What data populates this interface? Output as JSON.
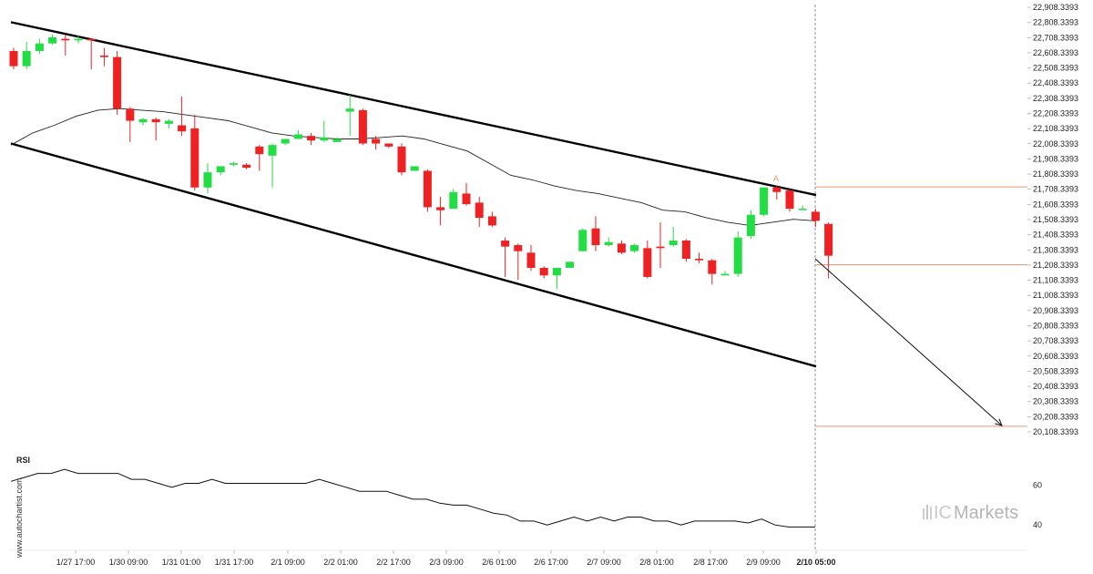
{
  "chart_data": [
    {
      "type": "candlestick",
      "x": [
        "1/27 17:00",
        "1/30 09:00",
        "1/31 01:00",
        "1/31 17:00",
        "2/1 09:00",
        "2/2 01:00",
        "2/2 17:00",
        "2/3 09:00",
        "2/6 01:00",
        "2/6 17:00",
        "2/7 09:00",
        "2/8 01:00",
        "2/8 17:00",
        "2/9 09:00",
        "2/10 05:00"
      ],
      "ylim": [
        20050,
        22950
      ],
      "yticks": [
        "22,908.3393",
        "22,808.3393",
        "22,708.3393",
        "22,608.3393",
        "22,508.3393",
        "22,408.3393",
        "22,308.3393",
        "22,208.3393",
        "22,108.3393",
        "22,008.3393",
        "21,908.3393",
        "21,808.3393",
        "21,708.3393",
        "21,608.3393",
        "21,508.3393",
        "21,408.3393",
        "21,308.3393",
        "21,208.3393",
        "21,108.3393",
        "21,008.3393",
        "20,908.3393",
        "20,808.3393",
        "20,708.3393",
        "20,608.3393",
        "20,508.3393",
        "20,408.3393",
        "20,308.3393",
        "20,208.3393",
        "20,108.3393"
      ],
      "candles": [
        {
          "o": 22620,
          "h": 22640,
          "c": 22520,
          "l": 22500
        },
        {
          "o": 22520,
          "h": 22680,
          "c": 22620,
          "l": 22500
        },
        {
          "o": 22620,
          "h": 22700,
          "c": 22670,
          "l": 22600
        },
        {
          "o": 22670,
          "h": 22730,
          "c": 22710,
          "l": 22660
        },
        {
          "o": 22700,
          "h": 22730,
          "c": 22690,
          "l": 22590
        },
        {
          "o": 22690,
          "h": 22720,
          "c": 22700,
          "l": 22670
        },
        {
          "o": 22700,
          "h": 22700,
          "c": 22690,
          "l": 22500
        },
        {
          "o": 22590,
          "h": 22640,
          "c": 22580,
          "l": 22520
        },
        {
          "o": 22580,
          "h": 22620,
          "c": 22240,
          "l": 22200
        },
        {
          "o": 22240,
          "h": 22250,
          "c": 22160,
          "l": 22020
        },
        {
          "o": 22150,
          "h": 22180,
          "c": 22170,
          "l": 22130
        },
        {
          "o": 22170,
          "h": 22180,
          "c": 22150,
          "l": 22030
        },
        {
          "o": 22140,
          "h": 22170,
          "c": 22160,
          "l": 22110
        },
        {
          "o": 22130,
          "h": 22320,
          "c": 22090,
          "l": 22060
        },
        {
          "o": 22110,
          "h": 22200,
          "c": 21720,
          "l": 21700
        },
        {
          "o": 21720,
          "h": 21880,
          "c": 21820,
          "l": 21680
        },
        {
          "o": 21820,
          "h": 21860,
          "c": 21860,
          "l": 21800
        },
        {
          "o": 21870,
          "h": 21890,
          "c": 21880,
          "l": 21860
        },
        {
          "o": 21870,
          "h": 21880,
          "c": 21850,
          "l": 21840
        },
        {
          "o": 21990,
          "h": 22000,
          "c": 21940,
          "l": 21830
        },
        {
          "o": 21930,
          "h": 22010,
          "c": 22000,
          "l": 21720
        },
        {
          "o": 22010,
          "h": 22040,
          "c": 22040,
          "l": 22000
        },
        {
          "o": 22040,
          "h": 22100,
          "c": 22070,
          "l": 22040
        },
        {
          "o": 22060,
          "h": 22080,
          "c": 22030,
          "l": 22000
        },
        {
          "o": 22030,
          "h": 22160,
          "c": 22050,
          "l": 22020
        },
        {
          "o": 22020,
          "h": 22050,
          "c": 22040,
          "l": 22030
        },
        {
          "o": 22220,
          "h": 22330,
          "c": 22240,
          "l": 22060
        },
        {
          "o": 22230,
          "h": 22240,
          "c": 22010,
          "l": 22000
        },
        {
          "o": 22040,
          "h": 22060,
          "c": 22010,
          "l": 21970
        },
        {
          "o": 22010,
          "h": 22010,
          "c": 21990,
          "l": 21980
        },
        {
          "o": 21990,
          "h": 22010,
          "c": 21820,
          "l": 21800
        },
        {
          "o": 21830,
          "h": 21860,
          "c": 21860,
          "l": 21830
        },
        {
          "o": 21830,
          "h": 21840,
          "c": 21590,
          "l": 21560
        },
        {
          "o": 21590,
          "h": 21660,
          "c": 21570,
          "l": 21470
        },
        {
          "o": 21580,
          "h": 21710,
          "c": 21690,
          "l": 21580
        },
        {
          "o": 21680,
          "h": 21750,
          "c": 21610,
          "l": 21600
        },
        {
          "o": 21620,
          "h": 21660,
          "c": 21520,
          "l": 21460
        },
        {
          "o": 21530,
          "h": 21560,
          "c": 21470,
          "l": 21460
        },
        {
          "o": 21370,
          "h": 21390,
          "c": 21330,
          "l": 21130
        },
        {
          "o": 21340,
          "h": 21350,
          "c": 21300,
          "l": 21110
        },
        {
          "o": 21290,
          "h": 21340,
          "c": 21190,
          "l": 21170
        },
        {
          "o": 21190,
          "h": 21200,
          "c": 21140,
          "l": 21120
        },
        {
          "o": 21140,
          "h": 21170,
          "c": 21190,
          "l": 21050
        },
        {
          "o": 21190,
          "h": 21230,
          "c": 21230,
          "l": 21190
        },
        {
          "o": 21300,
          "h": 21450,
          "c": 21440,
          "l": 21300
        },
        {
          "o": 21450,
          "h": 21530,
          "c": 21340,
          "l": 21300
        },
        {
          "o": 21340,
          "h": 21390,
          "c": 21360,
          "l": 21330
        },
        {
          "o": 21350,
          "h": 21370,
          "c": 21290,
          "l": 21280
        },
        {
          "o": 21300,
          "h": 21350,
          "c": 21340,
          "l": 21290
        },
        {
          "o": 21320,
          "h": 21370,
          "c": 21130,
          "l": 21120
        },
        {
          "o": 21330,
          "h": 21490,
          "c": 21320,
          "l": 21190
        },
        {
          "o": 21340,
          "h": 21460,
          "c": 21370,
          "l": 21330
        },
        {
          "o": 21370,
          "h": 21380,
          "c": 21250,
          "l": 21230
        },
        {
          "o": 21250,
          "h": 21290,
          "c": 21240,
          "l": 21220
        },
        {
          "o": 21240,
          "h": 21250,
          "c": 21150,
          "l": 21080
        },
        {
          "o": 21140,
          "h": 21170,
          "c": 21150,
          "l": 21140
        },
        {
          "o": 21150,
          "h": 21430,
          "c": 21390,
          "l": 21130
        },
        {
          "o": 21400,
          "h": 21570,
          "c": 21540,
          "l": 21380
        },
        {
          "o": 21540,
          "h": 21720,
          "c": 21720,
          "l": 21530
        },
        {
          "o": 21720,
          "h": 21730,
          "c": 21690,
          "l": 21640
        },
        {
          "o": 21700,
          "h": 21710,
          "c": 21580,
          "l": 21560
        },
        {
          "o": 21580,
          "h": 21600,
          "c": 21580,
          "l": 21570
        },
        {
          "o": 21560,
          "h": 21580,
          "c": 21500,
          "l": 21460
        },
        {
          "o": 21480,
          "h": 21490,
          "c": 21270,
          "l": 21120
        }
      ],
      "channel": {
        "upper": {
          "from": [
            "1/26 17:00",
            22810
          ],
          "to": [
            "2/10 05:00",
            21670
          ]
        },
        "lower": {
          "from": [
            "1/26 17:00",
            22010
          ],
          "to": [
            "2/10 05:00",
            20540
          ]
        }
      },
      "moving_average": [
        22000,
        22080,
        22130,
        22190,
        22230,
        22240,
        22230,
        22220,
        22200,
        22180,
        22160,
        22120,
        22080,
        22060,
        22050,
        22040,
        22040,
        22050,
        22060,
        22040,
        22000,
        21960,
        21880,
        21800,
        21770,
        21730,
        21700,
        21680,
        21650,
        21620,
        21570,
        21560,
        21520,
        21490,
        21470,
        21490,
        21510,
        21500
      ],
      "levels": [
        {
          "value": 21724,
          "color": "#e8956b"
        },
        {
          "value": 21210,
          "color": "#e8956b"
        },
        {
          "value": 20145,
          "color": "#e8956b"
        }
      ],
      "marker": {
        "label": "A",
        "color": "#e8956b"
      },
      "forecast": {
        "from": [
          "2/10 05:00",
          21250
        ],
        "to": [
          "2/12 20:00",
          20150
        ]
      },
      "colors": {
        "up": "#22dd44",
        "down": "#ee2222",
        "line": "#000000"
      }
    },
    {
      "type": "line",
      "panel": "RSI",
      "yticks": [
        "60",
        "40"
      ],
      "ylim": [
        30,
        75
      ],
      "values": [
        62,
        64,
        66,
        66,
        68,
        66,
        66,
        66,
        66,
        63,
        63,
        61,
        59,
        61,
        61,
        63,
        61,
        61,
        61,
        61,
        61,
        61,
        61,
        63,
        61,
        59,
        57,
        57,
        57,
        55,
        53,
        53,
        51,
        50,
        50,
        48,
        46,
        45,
        42,
        42,
        40,
        42,
        44,
        42,
        44,
        42,
        44,
        44,
        42,
        42,
        40,
        42,
        42,
        42,
        42,
        41,
        43,
        40,
        39,
        39,
        39
      ]
    }
  ],
  "labels": {
    "rsi": "RSI",
    "watermark": "www.autochartist.com",
    "brand_ic": "IC",
    "brand_name": "Markets"
  }
}
